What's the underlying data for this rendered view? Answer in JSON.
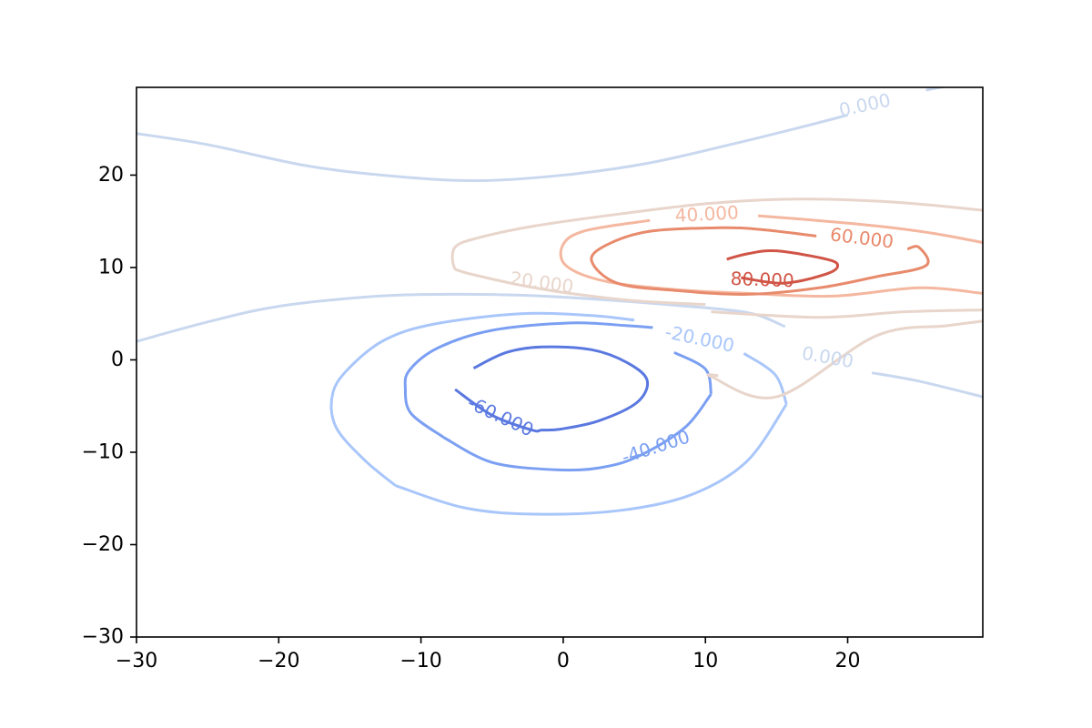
{
  "chart_data": {
    "type": "contour",
    "title": "",
    "xlabel": "",
    "ylabel": "",
    "xlim": [
      -30,
      29.5
    ],
    "ylim": [
      -30,
      29.5
    ],
    "x_ticks": [
      -30,
      -20,
      -10,
      0,
      10,
      20
    ],
    "y_ticks": [
      -30,
      -20,
      -10,
      0,
      10,
      20
    ],
    "x_tick_labels": [
      "−30",
      "−20",
      "−10",
      "0",
      "10",
      "20"
    ],
    "y_tick_labels": [
      "−30",
      "−20",
      "−10",
      "0",
      "10",
      "20"
    ],
    "grid": false,
    "colormap": "coolwarm",
    "levels": [
      {
        "value": -60,
        "label": "-60.000",
        "color": "#5a78e0"
      },
      {
        "value": -40,
        "label": "-40.000",
        "color": "#7b9ff2"
      },
      {
        "value": -20,
        "label": "-20.000",
        "color": "#a9c6fb"
      },
      {
        "value": 0,
        "label": "0.000",
        "color": "#c9d8ef"
      },
      {
        "value": 20,
        "label": "20.000",
        "color": "#e8d5cb"
      },
      {
        "value": 40,
        "label": "40.000",
        "color": "#f4b79f"
      },
      {
        "value": 60,
        "label": "60.000",
        "color": "#e88a6c"
      },
      {
        "value": 80,
        "label": "80.000",
        "color": "#d05546"
      }
    ],
    "contours": [
      {
        "level": -60,
        "points": [
          [
            -6.3,
            -0.9
          ],
          [
            -4,
            0.8
          ],
          [
            -1.5,
            1.4
          ],
          [
            2,
            1.1
          ],
          [
            4.5,
            -0.3
          ],
          [
            5.9,
            -2.2
          ],
          [
            5.2,
            -4.6
          ],
          [
            2.5,
            -6.6
          ],
          [
            -0.2,
            -7.5
          ],
          [
            -1.5,
            -7.6
          ],
          [
            -2.2,
            -7.6
          ],
          [
            -5,
            -6
          ],
          [
            -7.6,
            -3.2
          ]
        ]
      },
      {
        "level": -40,
        "points": [
          [
            -8.4,
            -8.4
          ],
          [
            -10.7,
            -5.8
          ],
          [
            -11.1,
            -3.1
          ],
          [
            -10.8,
            -1.1
          ],
          [
            -8.8,
            1.3
          ],
          [
            -5,
            3.2
          ],
          [
            0.5,
            4
          ],
          [
            4.5,
            3.7
          ],
          [
            6.3,
            3.5
          ]
        ]
      },
      {
        "level": -40,
        "points": [
          [
            10.4,
            -3.7
          ],
          [
            8.5,
            -7.4
          ],
          [
            5.2,
            -10.5
          ],
          [
            2.5,
            -11.7
          ],
          [
            -0.5,
            -11.9
          ],
          [
            -5,
            -11.1
          ],
          [
            -8.4,
            -8.4
          ]
        ]
      },
      {
        "level": -40,
        "points": [
          [
            7.8,
            0.8
          ],
          [
            10,
            -1
          ],
          [
            10.4,
            -3.7
          ]
        ]
      },
      {
        "level": -20,
        "points": [
          [
            -11.8,
            -13.6
          ],
          [
            -14,
            -10.8
          ],
          [
            -16,
            -7.2
          ],
          [
            -16.2,
            -3.6
          ],
          [
            -15,
            -0.8
          ],
          [
            -12.5,
            2.2
          ],
          [
            -9,
            3.9
          ],
          [
            -3,
            5
          ],
          [
            2,
            4.8
          ],
          [
            5,
            4.3
          ]
        ]
      },
      {
        "level": -20,
        "points": [
          [
            15.7,
            -4.8
          ],
          [
            12.9,
            -11
          ],
          [
            9,
            -14.6
          ],
          [
            4,
            -16.3
          ],
          [
            -2,
            -16.7
          ],
          [
            -7,
            -16
          ],
          [
            -11.8,
            -13.6
          ]
        ]
      },
      {
        "level": -20,
        "points": [
          [
            12.7,
            0.7
          ],
          [
            14.9,
            -1.6
          ],
          [
            15.7,
            -4.8
          ]
        ]
      },
      {
        "level": 0,
        "points": [
          [
            -30,
            24.5
          ],
          [
            -25,
            23.3
          ],
          [
            -18,
            21
          ],
          [
            -12,
            19.9
          ],
          [
            -6,
            19.4
          ],
          [
            0,
            20
          ],
          [
            6,
            21.3
          ],
          [
            12,
            23.4
          ],
          [
            17,
            25.3
          ],
          [
            20,
            26.5
          ]
        ]
      },
      {
        "level": 0,
        "points": [
          [
            25.5,
            29.2
          ],
          [
            28,
            29.9
          ],
          [
            29.5,
            30
          ]
        ]
      },
      {
        "level": 0,
        "points": [
          [
            -30,
            2
          ],
          [
            -25,
            4.1
          ],
          [
            -20,
            5.8
          ],
          [
            -13,
            6.9
          ],
          [
            -8,
            7.1
          ],
          [
            -3,
            7
          ],
          [
            2,
            6.6
          ],
          [
            8,
            5.9
          ],
          [
            13,
            5.1
          ],
          [
            15.6,
            3.6
          ]
        ]
      },
      {
        "level": 0,
        "points": [
          [
            21.7,
            -1.4
          ],
          [
            25,
            -2.3
          ],
          [
            29.5,
            -4
          ]
        ]
      },
      {
        "level": 20,
        "points": [
          [
            10.9,
            -1.7
          ],
          [
            10.4,
            -1.8
          ],
          [
            15,
            -4
          ],
          [
            22,
            2.6
          ],
          [
            27,
            3.7
          ],
          [
            29.5,
            4.2
          ]
        ]
      },
      {
        "level": 20,
        "points": [
          [
            -3.4,
            8.2
          ],
          [
            -7,
            9.5
          ],
          [
            -7.7,
            10.2
          ],
          [
            -7.6,
            12.2
          ],
          [
            -6,
            13.2
          ],
          [
            -2,
            14.5
          ],
          [
            4,
            15.8
          ],
          [
            10,
            16.9
          ],
          [
            16,
            17.4
          ],
          [
            23,
            17.1
          ],
          [
            29.5,
            16.2
          ]
        ]
      },
      {
        "level": 20,
        "points": [
          [
            -3.4,
            8.2
          ],
          [
            0,
            7.3
          ],
          [
            5,
            6.4
          ],
          [
            10,
            6
          ]
        ]
      },
      {
        "level": 20,
        "points": [
          [
            10.4,
            5.2
          ],
          [
            18,
            4.6
          ],
          [
            24,
            5.2
          ],
          [
            29.5,
            5.4
          ]
        ]
      },
      {
        "level": 40,
        "points": [
          [
            6.1,
            15.1
          ],
          [
            1.6,
            14
          ],
          [
            0,
            12.5
          ],
          [
            0.2,
            10.2
          ],
          [
            3,
            8.5
          ],
          [
            8,
            7.6
          ],
          [
            13,
            7.2
          ],
          [
            19,
            6.9
          ],
          [
            25,
            7.8
          ],
          [
            29.5,
            7.2
          ]
        ]
      },
      {
        "level": 40,
        "points": [
          [
            13.7,
            15.6
          ],
          [
            17,
            15.2
          ],
          [
            22,
            14.5
          ],
          [
            26,
            13.7
          ],
          [
            29.5,
            12.7
          ]
        ]
      },
      {
        "level": 60,
        "points": [
          [
            17.8,
            13.4
          ],
          [
            14,
            14.1
          ],
          [
            11,
            14.3
          ],
          [
            6,
            13.9
          ],
          [
            3,
            12.4
          ],
          [
            2,
            10.7
          ],
          [
            3.8,
            8.3
          ],
          [
            8,
            7.5
          ],
          [
            13,
            7.1
          ],
          [
            18,
            7.8
          ],
          [
            22,
            9
          ],
          [
            25.5,
            10.2
          ],
          [
            25,
            12.2
          ],
          [
            24.2,
            12
          ]
        ]
      },
      {
        "level": 80,
        "points": [
          [
            11.5,
            10.9
          ],
          [
            13,
            11.5
          ],
          [
            15,
            11.8
          ],
          [
            18.5,
            10.9
          ],
          [
            19.3,
            10.2
          ],
          [
            18.5,
            9.3
          ],
          [
            15.5,
            8.3
          ],
          [
            12.5,
            8.9
          ]
        ]
      }
    ],
    "labels": [
      {
        "level": 0,
        "x": 21.2,
        "y": 27.6,
        "text": "0.000",
        "rotation": -12
      },
      {
        "level": 40,
        "x": 10.1,
        "y": 15.8,
        "text": "40.000",
        "rotation": -3
      },
      {
        "level": 60,
        "x": 21,
        "y": 13.2,
        "text": "60.000",
        "rotation": 7
      },
      {
        "level": 80,
        "x": 14,
        "y": 8.7,
        "text": "80.000",
        "rotation": 2
      },
      {
        "level": 20,
        "x": -1.5,
        "y": 8.4,
        "text": "20.000",
        "rotation": 8
      },
      {
        "level": -20,
        "x": 9.6,
        "y": 2.3,
        "text": "-20.000",
        "rotation": 12
      },
      {
        "level": 0,
        "x": 18.6,
        "y": 0.3,
        "text": "0.000",
        "rotation": 10
      },
      {
        "level": -60,
        "x": -4.4,
        "y": -6.1,
        "text": "-60.000",
        "rotation": 25
      },
      {
        "level": -40,
        "x": 6.5,
        "y": -9.4,
        "text": "-40.000",
        "rotation": -18
      }
    ]
  }
}
